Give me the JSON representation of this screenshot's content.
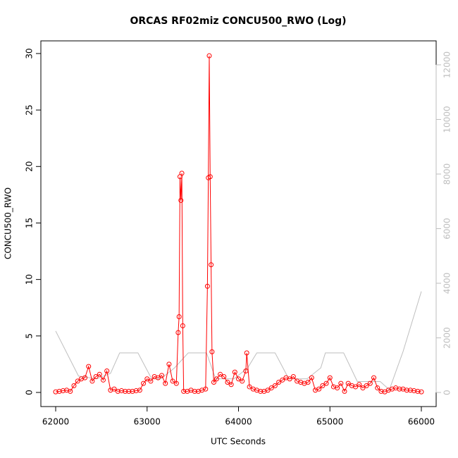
{
  "chart_data": {
    "type": "line",
    "title": "ORCAS RF02miz CONCU500_RWO (Log)",
    "x_label": "UTC Seconds",
    "y_label": "CONCU500_RWO",
    "xlim": [
      61838,
      66162
    ],
    "xticks": [
      62000,
      63000,
      64000,
      65000,
      66000
    ],
    "ylim": [
      -1.25,
      31.12
    ],
    "yticks": [
      0,
      5,
      10,
      15,
      20,
      25,
      30
    ],
    "y2lim": [
      -516,
      12877
    ],
    "y2ticks": [
      0,
      2000,
      4000,
      6000,
      8000,
      10000,
      12000
    ],
    "series": [
      {
        "color": "#bebebe",
        "axis": "y2",
        "marker": "none",
        "x": [
          62000,
          62250,
          62450,
          62600,
          62700,
          62900,
          63050,
          63150,
          63300,
          63450,
          63650,
          63750,
          63950,
          64100,
          64200,
          64400,
          64550,
          64750,
          64900,
          64950,
          65150,
          65300,
          65550,
          65650,
          65800,
          66000
        ],
        "values": [
          2250,
          600,
          500,
          700,
          1450,
          1450,
          500,
          500,
          900,
          1450,
          1450,
          500,
          500,
          900,
          1450,
          1450,
          500,
          500,
          900,
          1450,
          1450,
          400,
          400,
          100,
          1500,
          3700
        ]
      },
      {
        "color": "#ff0000",
        "axis": "y",
        "marker": "circle",
        "x": [
          62000,
          62040,
          62080,
          62120,
          62160,
          62200,
          62240,
          62280,
          62320,
          62360,
          62400,
          62440,
          62480,
          62520,
          62560,
          62600,
          62640,
          62680,
          62720,
          62760,
          62800,
          62840,
          62880,
          62920,
          62960,
          63000,
          63040,
          63080,
          63120,
          63160,
          63200,
          63240,
          63280,
          63320,
          63340,
          63350,
          63360,
          63370,
          63380,
          63390,
          63400,
          63440,
          63480,
          63520,
          63560,
          63600,
          63640,
          63660,
          63670,
          63680,
          63690,
          63700,
          63710,
          63730,
          63760,
          63800,
          63840,
          63880,
          63920,
          63960,
          64000,
          64040,
          64080,
          64090,
          64120,
          64160,
          64200,
          64240,
          64280,
          64320,
          64360,
          64400,
          64440,
          64480,
          64520,
          64560,
          64600,
          64640,
          64680,
          64720,
          64760,
          64800,
          64840,
          64880,
          64920,
          64960,
          65000,
          65040,
          65080,
          65120,
          65160,
          65200,
          65240,
          65280,
          65320,
          65360,
          65400,
          65440,
          65480,
          65520,
          65560,
          65600,
          65640,
          65680,
          65720,
          65760,
          65800,
          65840,
          65880,
          65920,
          65960,
          66000
        ],
        "values": [
          0.05,
          0.1,
          0.15,
          0.2,
          0.1,
          0.6,
          1.0,
          1.2,
          1.3,
          2.3,
          1.0,
          1.4,
          1.6,
          1.1,
          1.9,
          0.2,
          0.3,
          0.1,
          0.15,
          0.1,
          0.1,
          0.1,
          0.15,
          0.2,
          0.8,
          1.2,
          1.0,
          1.4,
          1.3,
          1.5,
          0.8,
          2.5,
          1.0,
          0.8,
          5.3,
          6.7,
          19.1,
          17.0,
          19.4,
          5.9,
          0.1,
          0.1,
          0.2,
          0.1,
          0.1,
          0.2,
          0.3,
          9.4,
          19.0,
          29.8,
          19.1,
          11.3,
          3.6,
          0.9,
          1.2,
          1.6,
          1.4,
          0.9,
          0.7,
          1.8,
          1.2,
          1.0,
          1.9,
          3.5,
          0.5,
          0.3,
          0.2,
          0.1,
          0.1,
          0.2,
          0.4,
          0.6,
          0.9,
          1.1,
          1.3,
          1.2,
          1.4,
          1.0,
          0.9,
          0.8,
          0.9,
          1.3,
          0.2,
          0.3,
          0.6,
          0.8,
          1.3,
          0.5,
          0.4,
          0.8,
          0.1,
          0.8,
          0.6,
          0.5,
          0.7,
          0.4,
          0.6,
          0.8,
          1.3,
          0.4,
          0.1,
          0.05,
          0.2,
          0.3,
          0.4,
          0.3,
          0.3,
          0.2,
          0.2,
          0.15,
          0.1,
          0.05
        ]
      }
    ]
  }
}
